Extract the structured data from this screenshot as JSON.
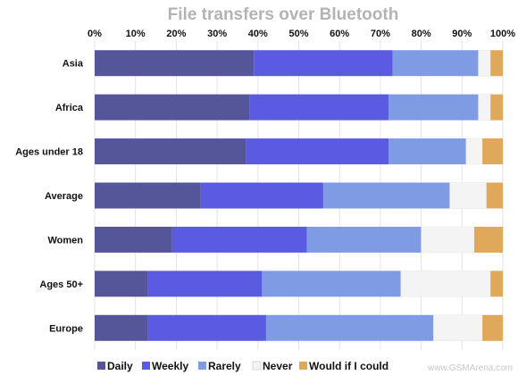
{
  "chart_data": {
    "type": "bar",
    "orientation": "horizontal",
    "stacked": true,
    "title": "File transfers over Bluetooth",
    "xlim": [
      0,
      100
    ],
    "x_ticks": [
      "0%",
      "10%",
      "20%",
      "30%",
      "40%",
      "50%",
      "60%",
      "70%",
      "80%",
      "90%",
      "100%"
    ],
    "x_axis_position": "top",
    "grid": true,
    "legend_position": "bottom-left",
    "categories": [
      "Asia",
      "Africa",
      "Ages under 18",
      "Average",
      "Women",
      "Ages 50+",
      "Europe"
    ],
    "series": [
      {
        "name": "Daily",
        "color": "#55559a",
        "values": [
          39,
          38,
          37,
          26,
          19,
          13,
          13
        ]
      },
      {
        "name": "Weekly",
        "color": "#5a5be0",
        "values": [
          34,
          34,
          35,
          30,
          33,
          28,
          29
        ]
      },
      {
        "name": "Rarely",
        "color": "#7f9be4",
        "values": [
          21,
          22,
          19,
          31,
          28,
          34,
          41
        ]
      },
      {
        "name": "Never",
        "color": "#f4f4f4",
        "values": [
          3,
          3,
          4,
          9,
          13,
          22,
          12
        ]
      },
      {
        "name": "Would if I could",
        "color": "#e0a85a",
        "values": [
          3,
          3,
          5,
          4,
          7,
          3,
          5
        ]
      }
    ]
  },
  "watermark": "www.GSMArena.com"
}
